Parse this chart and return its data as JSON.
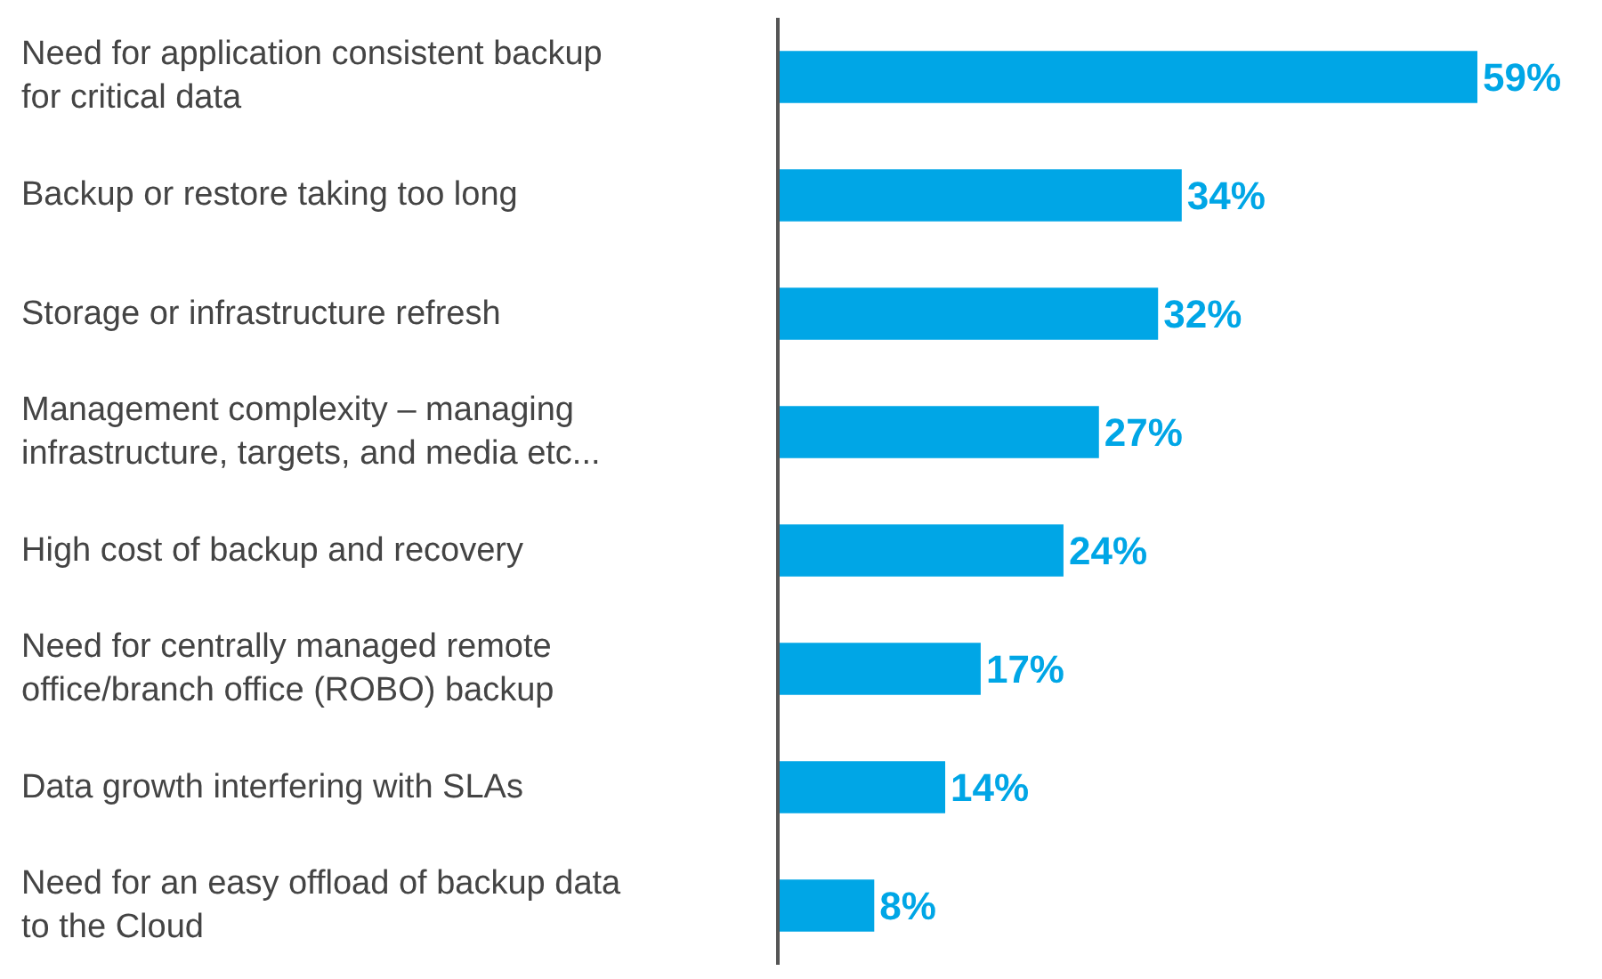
{
  "chart_data": {
    "type": "bar",
    "orientation": "horizontal",
    "data_labels": true,
    "categories": [
      "Need for application consistent backup for critical data",
      "Backup or restore taking too long",
      "Storage or infrastructure refresh",
      "Management complexity – managing infrastructure, targets, and media etc...",
      "High cost of backup and recovery",
      "Need for centrally managed remote office/branch office (ROBO) backup",
      "Data growth interfering with SLAs",
      "Need for an easy offload of backup data to the Cloud"
    ],
    "values": [
      59,
      34,
      32,
      27,
      24,
      17,
      14,
      8
    ],
    "value_labels": [
      "59%",
      "34%",
      "32%",
      "27%",
      "24%",
      "17%",
      "14%",
      "8%"
    ],
    "color": "#00a6e6"
  }
}
